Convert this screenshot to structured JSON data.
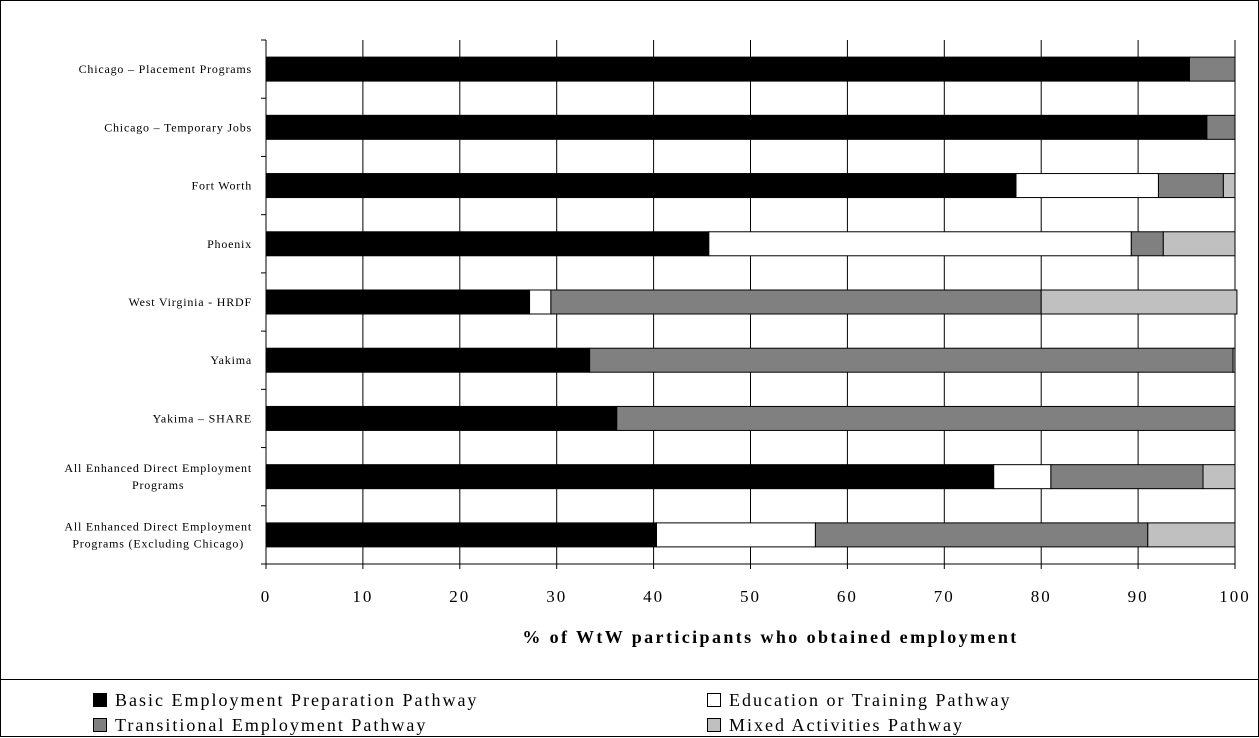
{
  "chart_data": {
    "type": "bar",
    "orientation": "horizontal",
    "stacked": true,
    "categories": [
      [
        "Chicago – Placement Programs"
      ],
      [
        "Chicago – Temporary Jobs"
      ],
      [
        "Fort Worth"
      ],
      [
        "Phoenix"
      ],
      [
        "West Virginia - HRDF"
      ],
      [
        "Yakima"
      ],
      [
        "Yakima – SHARE"
      ],
      [
        "All Enhanced Direct Employment",
        "Programs"
      ],
      [
        "All Enhanced Direct Employment",
        "Programs (Excluding Chicago)"
      ]
    ],
    "series": [
      {
        "name": "Basic Employment Preparation Pathway",
        "color": "#000000",
        "values": [
          95.3,
          97.1,
          77.4,
          45.7,
          27.2,
          33.4,
          36.2,
          75.1,
          40.3
        ]
      },
      {
        "name": "Education or Training Pathway",
        "color": "#ffffff",
        "values": [
          0,
          0,
          14.7,
          43.6,
          2.2,
          0,
          0,
          5.9,
          16.4
        ]
      },
      {
        "name": "Transitional Employment Pathway",
        "color": "#808080",
        "values": [
          4.7,
          2.9,
          6.7,
          3.3,
          50.6,
          66.4,
          63.8,
          15.7,
          34.3
        ]
      },
      {
        "name": "Mixed Activities Pathway",
        "color": "#c0c0c0",
        "values": [
          0,
          0,
          1.2,
          7.4,
          20.2,
          0.2,
          0,
          3.3,
          9.0
        ]
      }
    ],
    "xlim": [
      0,
      100
    ],
    "xticks": [
      "0",
      "10",
      "20",
      "30",
      "40",
      "50",
      "60",
      "70",
      "80",
      "90",
      "100"
    ],
    "xlabel": "% of WtW participants who obtained employment",
    "ylabel": "",
    "grid": true,
    "legend_position": "bottom"
  }
}
